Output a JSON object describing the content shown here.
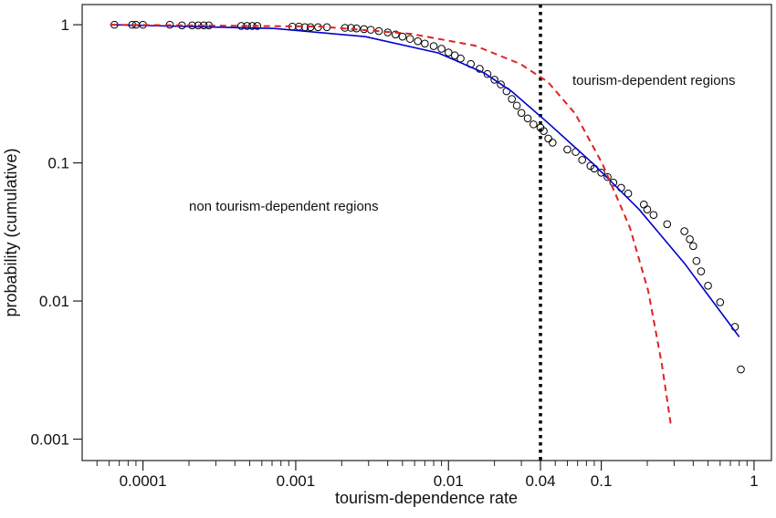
{
  "chart_data": {
    "type": "scatter",
    "xlabel": "tourism-dependence rate",
    "ylabel": "probability (cumulative)",
    "xlog": true,
    "ylog": true,
    "xlim": [
      4e-05,
      1.3
    ],
    "ylim": [
      0.0007,
      1.4
    ],
    "xticks": [
      0.0001,
      0.001,
      0.01,
      0.04,
      0.1,
      1
    ],
    "xminorticks": [
      5e-05,
      6e-05,
      7e-05,
      8e-05,
      9e-05,
      0.0002,
      0.0003,
      0.0004,
      0.0005,
      0.0006,
      0.0007,
      0.0008,
      0.0009,
      0.002,
      0.003,
      0.004,
      0.005,
      0.006,
      0.007,
      0.008,
      0.009,
      0.02,
      0.03,
      0.05,
      0.06,
      0.07,
      0.08,
      0.09,
      0.2,
      0.3,
      0.4,
      0.5,
      0.6,
      0.7,
      0.8,
      0.9
    ],
    "yticks": [
      1,
      0.1,
      0.01,
      0.001
    ],
    "vlines": [
      0.04
    ],
    "annotations": [
      "tourism-dependent regions",
      "non tourism-dependent regions"
    ],
    "series": [
      {
        "type": "scatter",
        "color": "#000000",
        "x": [
          6.5e-05,
          8.5e-05,
          9e-05,
          0.0001,
          0.00015,
          0.00018,
          0.00021,
          0.00023,
          0.00025,
          0.00027,
          0.00044,
          0.00048,
          0.00052,
          0.00056,
          0.00095,
          0.00105,
          0.00115,
          0.00125,
          0.0014,
          0.0016,
          0.0021,
          0.0023,
          0.0025,
          0.0028,
          0.0031,
          0.0035,
          0.004,
          0.0045,
          0.005,
          0.0056,
          0.0063,
          0.007,
          0.008,
          0.009,
          0.01,
          0.011,
          0.012,
          0.014,
          0.016,
          0.018,
          0.02,
          0.022,
          0.024,
          0.026,
          0.028,
          0.03,
          0.033,
          0.036,
          0.04,
          0.042,
          0.045,
          0.048,
          0.06,
          0.068,
          0.075,
          0.085,
          0.09,
          0.1,
          0.11,
          0.12,
          0.135,
          0.15,
          0.19,
          0.2,
          0.22,
          0.27,
          0.35,
          0.38,
          0.4,
          0.42,
          0.45,
          0.5,
          0.6,
          0.75,
          0.82
        ],
        "values": [
          1,
          1,
          1,
          1,
          1,
          0.99,
          0.99,
          0.99,
          0.99,
          0.99,
          0.98,
          0.98,
          0.98,
          0.98,
          0.97,
          0.97,
          0.96,
          0.96,
          0.96,
          0.96,
          0.95,
          0.95,
          0.94,
          0.93,
          0.92,
          0.9,
          0.88,
          0.85,
          0.82,
          0.79,
          0.76,
          0.73,
          0.7,
          0.67,
          0.63,
          0.6,
          0.57,
          0.52,
          0.48,
          0.44,
          0.4,
          0.37,
          0.33,
          0.29,
          0.26,
          0.23,
          0.21,
          0.19,
          0.18,
          0.17,
          0.15,
          0.14,
          0.125,
          0.12,
          0.105,
          0.095,
          0.091,
          0.085,
          0.079,
          0.072,
          0.066,
          0.06,
          0.05,
          0.046,
          0.042,
          0.036,
          0.032,
          0.028,
          0.025,
          0.0195,
          0.0164,
          0.0129,
          0.0098,
          0.0065,
          0.0032
        ]
      },
      {
        "type": "line",
        "color": "#0000cc",
        "x": [
          6.1e-05,
          0.00072,
          0.00286,
          0.0086,
          0.0171,
          0.0258,
          0.0448,
          0.089,
          0.177,
          0.352,
          0.531,
          0.8
        ],
        "values": [
          1,
          0.94,
          0.82,
          0.625,
          0.448,
          0.331,
          0.195,
          0.098,
          0.046,
          0.0186,
          0.0101,
          0.0055
        ]
      },
      {
        "type": "line",
        "dashed": true,
        "color": "#dd2222",
        "x": [
          6.1e-05,
          0.00144,
          0.0057,
          0.0149,
          0.0296,
          0.0448,
          0.0676,
          0.102,
          0.154,
          0.203,
          0.249,
          0.286
        ],
        "values": [
          1,
          0.97,
          0.86,
          0.706,
          0.52,
          0.385,
          0.227,
          0.098,
          0.034,
          0.0118,
          0.0035,
          0.00125
        ]
      }
    ]
  }
}
